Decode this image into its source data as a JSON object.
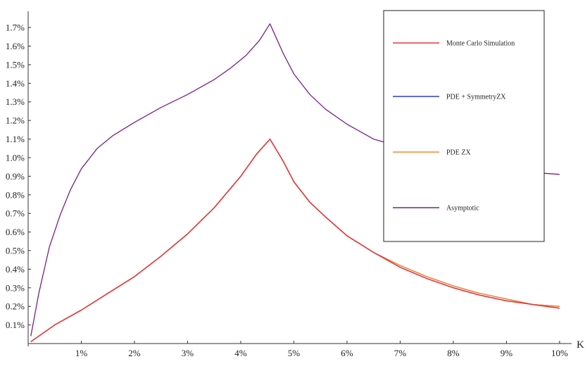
{
  "chart_data": {
    "type": "line",
    "title": "",
    "xlabel": "K",
    "ylabel": "",
    "xlim": [
      0.0,
      10.2
    ],
    "ylim": [
      0.0,
      1.78
    ],
    "grid": false,
    "legend_placement": "top-right",
    "x_ticks": [
      1,
      2,
      3,
      4,
      5,
      6,
      7,
      8,
      9,
      10
    ],
    "x_tick_labels": [
      "1%",
      "2%",
      "3%",
      "4%",
      "5%",
      "6%",
      "7%",
      "8%",
      "9%",
      "10%"
    ],
    "y_ticks": [
      0.1,
      0.2,
      0.3,
      0.4,
      0.5,
      0.6,
      0.7,
      0.8,
      0.9,
      1.0,
      1.1,
      1.2,
      1.3,
      1.4,
      1.5,
      1.6,
      1.7
    ],
    "y_tick_labels": [
      "0.1%",
      "0.2%",
      "0.3%",
      "0.4%",
      "0.5%",
      "0.6%",
      "0.7%",
      "0.8%",
      "0.9%",
      "1.0%",
      "1.1%",
      "1.2%",
      "1.3%",
      "1.4%",
      "1.5%",
      "1.6%",
      "1.7%"
    ],
    "series": [
      {
        "name": "Monte Carlo Simulation",
        "color": "#e8383a",
        "x": [
          0.05,
          0.5,
          1.0,
          1.5,
          2.0,
          2.5,
          3.0,
          3.5,
          4.0,
          4.3,
          4.55,
          4.8,
          5.0,
          5.3,
          5.6,
          6.0,
          6.5,
          7.0,
          7.5,
          8.0,
          8.5,
          9.0,
          9.5,
          10.0
        ],
        "y": [
          0.01,
          0.1,
          0.18,
          0.27,
          0.36,
          0.47,
          0.59,
          0.73,
          0.9,
          1.02,
          1.1,
          0.98,
          0.87,
          0.76,
          0.68,
          0.58,
          0.49,
          0.41,
          0.35,
          0.3,
          0.26,
          0.23,
          0.21,
          0.19
        ]
      },
      {
        "name": "PDE + SymmetryZX",
        "color": "#2c3ec8",
        "x": [
          0.05,
          0.5,
          1.0,
          1.5,
          2.0,
          2.5,
          3.0,
          3.5,
          4.0,
          4.3,
          4.55,
          4.8,
          5.0,
          5.3,
          5.6,
          6.0,
          6.5,
          7.0,
          7.5,
          8.0,
          8.5,
          9.0,
          9.5,
          10.0
        ],
        "y": [
          0.01,
          0.1,
          0.18,
          0.27,
          0.36,
          0.47,
          0.59,
          0.73,
          0.9,
          1.02,
          1.1,
          0.98,
          0.87,
          0.76,
          0.68,
          0.58,
          0.49,
          0.42,
          0.36,
          0.31,
          0.27,
          0.24,
          0.21,
          0.2
        ]
      },
      {
        "name": "PDE ZX",
        "color": "#f28a2e",
        "x": [
          0.05,
          0.5,
          1.0,
          1.5,
          2.0,
          2.5,
          3.0,
          3.5,
          4.0,
          4.3,
          4.55,
          4.8,
          5.0,
          5.3,
          5.6,
          6.0,
          6.5,
          7.0,
          7.5,
          8.0,
          8.5,
          9.0,
          9.5,
          10.0
        ],
        "y": [
          0.01,
          0.1,
          0.18,
          0.27,
          0.36,
          0.47,
          0.59,
          0.73,
          0.9,
          1.02,
          1.1,
          0.98,
          0.87,
          0.76,
          0.68,
          0.58,
          0.49,
          0.42,
          0.36,
          0.31,
          0.27,
          0.24,
          0.21,
          0.2
        ]
      },
      {
        "name": "Asymptotic",
        "color": "#7b1e8c",
        "x": [
          0.05,
          0.2,
          0.4,
          0.6,
          0.8,
          1.0,
          1.3,
          1.6,
          2.0,
          2.5,
          3.0,
          3.5,
          3.8,
          4.1,
          4.35,
          4.55,
          4.8,
          5.0,
          5.3,
          5.6,
          6.0,
          6.5,
          7.0,
          7.5,
          8.0,
          8.5,
          9.0,
          9.5,
          10.0
        ],
        "y": [
          0.04,
          0.27,
          0.52,
          0.69,
          0.83,
          0.94,
          1.05,
          1.12,
          1.19,
          1.27,
          1.34,
          1.42,
          1.48,
          1.55,
          1.63,
          1.72,
          1.56,
          1.45,
          1.34,
          1.26,
          1.18,
          1.1,
          1.06,
          1.02,
          0.99,
          0.96,
          0.93,
          0.92,
          0.91
        ]
      }
    ]
  }
}
